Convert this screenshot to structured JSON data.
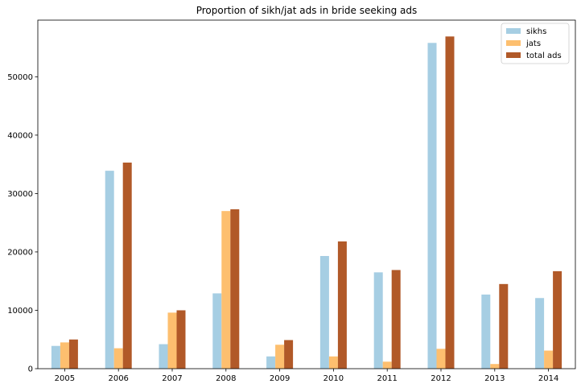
{
  "chart_data": {
    "type": "bar",
    "title": "Proportion of sikh/jat ads in bride seeking ads",
    "xlabel": "",
    "ylabel": "",
    "categories": [
      "2005",
      "2006",
      "2007",
      "2008",
      "2009",
      "2010",
      "2011",
      "2012",
      "2013",
      "2014"
    ],
    "series": [
      {
        "name": "sikhs",
        "color": "#a6cee3",
        "values": [
          3900,
          33900,
          4200,
          12900,
          2100,
          19300,
          16500,
          55800,
          12700,
          12100
        ]
      },
      {
        "name": "jats",
        "color": "#fdbf6f",
        "values": [
          4500,
          3500,
          9600,
          27000,
          4100,
          2100,
          1200,
          3400,
          800,
          3100
        ]
      },
      {
        "name": "total ads",
        "color": "#b15928",
        "values": [
          5000,
          35300,
          10000,
          27300,
          4900,
          21800,
          16900,
          56900,
          14500,
          16700
        ]
      }
    ],
    "ylim": [
      0,
      59700
    ],
    "yticks": [
      0,
      10000,
      20000,
      30000,
      40000,
      50000
    ],
    "ytick_labels": [
      "0",
      "10000",
      "20000",
      "30000",
      "40000",
      "50000"
    ],
    "grid": false,
    "legend_position": "top-right"
  }
}
